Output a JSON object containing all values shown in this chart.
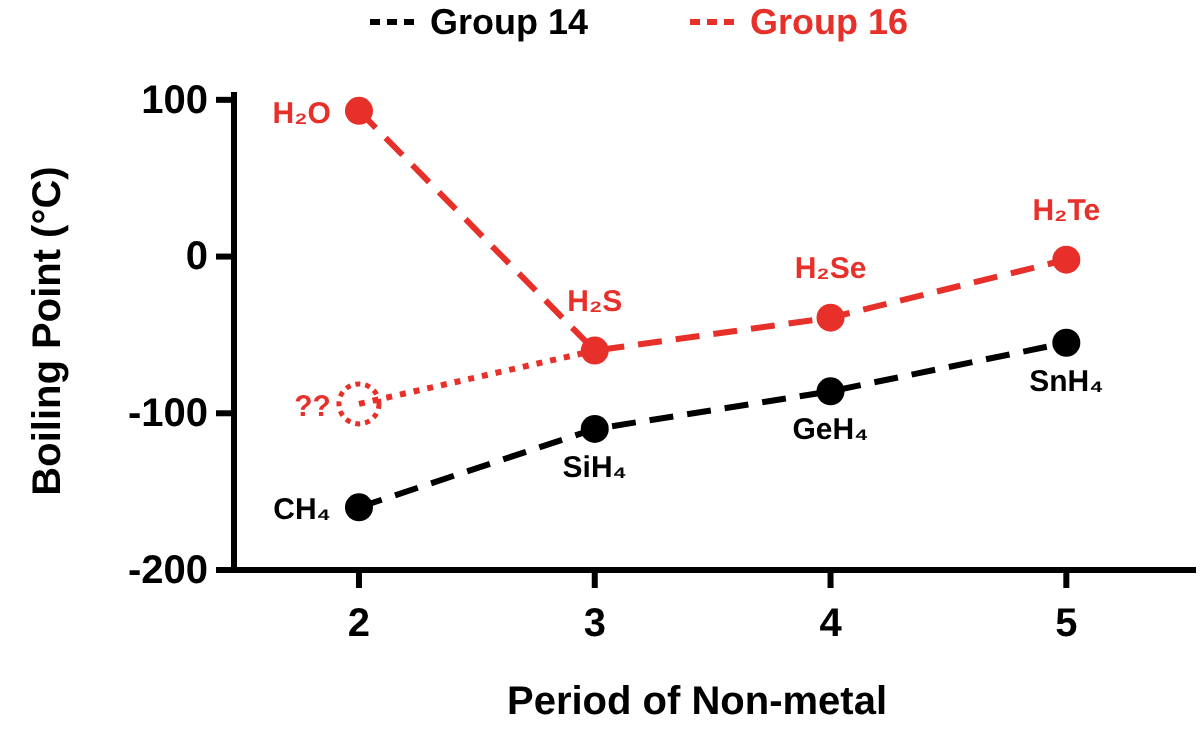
{
  "chart_data": {
    "type": "line",
    "xlabel": "Period of Non-metal",
    "ylabel": "Boiling Point (°C)",
    "x": [
      2,
      3,
      4,
      5
    ],
    "series": [
      {
        "name": null,
        "color": "#e8302a",
        "x": [
          2,
          3
        ],
        "values": [
          -94,
          -60
        ],
        "line_style": "dotted"
      },
      {
        "name": "Group 14",
        "color": "#000000",
        "values": [
          -160,
          -110,
          -86,
          -55
        ]
      },
      {
        "name": "Group 16",
        "color": "#e8302a",
        "values": [
          93,
          -60,
          -39,
          -2
        ]
      }
    ],
    "xlim": [
      1.47,
      5.55
    ],
    "ylim": [
      -200,
      105
    ],
    "xticks": [
      2,
      3,
      4,
      5
    ],
    "yticks": [
      -200,
      -100,
      0,
      100
    ],
    "marker": "circle",
    "line_style": "dashed",
    "legend": "top",
    "grid": false,
    "annotations": [
      {
        "text": "H₂O",
        "x": 2,
        "y": 93
      },
      {
        "text": "H₂S",
        "x": 3,
        "y": -60
      },
      {
        "text": "H₂Se",
        "x": 4,
        "y": -39
      },
      {
        "text": "H₂Te",
        "x": 5,
        "y": -2
      },
      {
        "text": "CH₄",
        "x": 2,
        "y": -160
      },
      {
        "text": "SiH₄",
        "x": 3,
        "y": -110
      },
      {
        "text": "GeH₄",
        "x": 4,
        "y": -86
      },
      {
        "text": "SnH₄",
        "x": 5,
        "y": -55
      },
      {
        "text": "??",
        "x": 2,
        "y": -94
      }
    ]
  }
}
